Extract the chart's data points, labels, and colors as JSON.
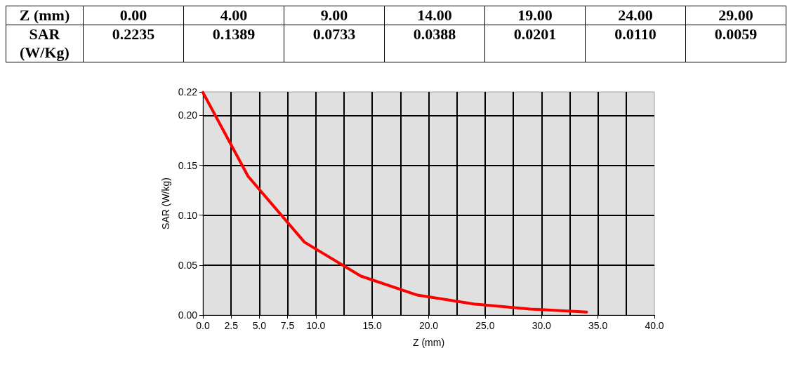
{
  "chart_data": [
    {
      "type": "other",
      "xlabel": "Z (mm)",
      "ylabel": "SAR (W/Kg)",
      "categories": [
        "0.00",
        "4.00",
        "9.00",
        "14.00",
        "19.00",
        "24.00",
        "29.00"
      ],
      "values": [
        0.2235,
        0.1389,
        0.0733,
        0.0388,
        0.0201,
        0.011,
        0.0059
      ],
      "value_labels": [
        "0.2235",
        "0.1389",
        "0.0733",
        "0.0388",
        "0.0201",
        "0.0110",
        "0.0059"
      ]
    },
    {
      "type": "line",
      "xlabel": "Z (mm)",
      "ylabel": "SAR (W/kg)",
      "x": [
        0,
        4,
        9,
        14,
        19,
        24,
        29,
        34
      ],
      "series": [
        {
          "color": "#ff0000",
          "values": [
            0.223,
            0.139,
            0.073,
            0.039,
            0.02,
            0.011,
            0.006,
            0.003
          ]
        }
      ],
      "xlim": [
        0,
        40
      ],
      "xticks": [
        {
          "value": 0,
          "label": "0.0"
        },
        {
          "value": 2.5,
          "label": "2.5"
        },
        {
          "value": 5,
          "label": "5.0"
        },
        {
          "value": 7.5,
          "label": "7.5"
        },
        {
          "value": 10,
          "label": "10.0"
        },
        {
          "value": 12.5,
          "label": null
        },
        {
          "value": 15,
          "label": "15.0"
        },
        {
          "value": 17.5,
          "label": null
        },
        {
          "value": 20,
          "label": "20.0"
        },
        {
          "value": 22.5,
          "label": null
        },
        {
          "value": 25,
          "label": "25.0"
        },
        {
          "value": 27.5,
          "label": null
        },
        {
          "value": 30,
          "label": "30.0"
        },
        {
          "value": 32.5,
          "label": null
        },
        {
          "value": 35,
          "label": "35.0"
        },
        {
          "value": 37.5,
          "label": null
        },
        {
          "value": 40,
          "label": "40.0"
        }
      ],
      "ylim": [
        0,
        0.2235
      ],
      "yticks": [
        {
          "value": 0,
          "label": "0.00"
        },
        {
          "value": 0.05,
          "label": "0.05"
        },
        {
          "value": 0.1,
          "label": "0.10"
        },
        {
          "value": 0.15,
          "label": "0.15"
        },
        {
          "value": 0.2,
          "label": "0.20"
        },
        {
          "value": 0.2235,
          "label": "0.22"
        }
      ],
      "grid": true,
      "marker": "none",
      "line_style": "solid"
    }
  ]
}
